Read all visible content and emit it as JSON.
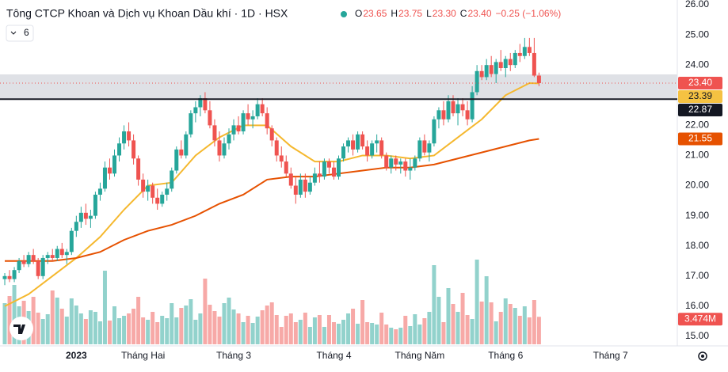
{
  "chart_data": {
    "type": "candlestick",
    "title": "Tông CTCP Khoan và Dịch vụ Khoan Dầu khí · 1D · HSX",
    "ohlc": [
      {
        "key": "O",
        "value": "23.65"
      },
      {
        "key": "H",
        "value": "23.75"
      },
      {
        "key": "L",
        "value": "23.30"
      },
      {
        "key": "C",
        "value": "23.40"
      }
    ],
    "change": "−0.25 (−1.06%)",
    "indicator_count": "6",
    "up_color": "#26a69a",
    "down_color": "#ef5350",
    "up_volume_color": "#92d2cc",
    "down_volume_color": "#f7a9a7",
    "xlim": [
      -1,
      141
    ],
    "xticks": [
      {
        "value": 15,
        "label": "2023"
      },
      {
        "value": 29,
        "label": "Tháng Hai"
      },
      {
        "value": 48,
        "label": "Tháng 3"
      },
      {
        "value": 69,
        "label": "Tháng 4"
      },
      {
        "value": 87,
        "label": "Tháng Năm"
      },
      {
        "value": 105,
        "label": "Tháng 6"
      },
      {
        "value": 127,
        "label": "Tháng 7"
      }
    ],
    "ylim": [
      15,
      26
    ],
    "yticks": [
      {
        "value": 15,
        "label": "15.00"
      },
      {
        "value": 16,
        "label": "16.00"
      },
      {
        "value": 17,
        "label": "17.00"
      },
      {
        "value": 18,
        "label": "18.00"
      },
      {
        "value": 19,
        "label": "19.00"
      },
      {
        "value": 20,
        "label": "20.00"
      },
      {
        "value": 21,
        "label": "21.00"
      },
      {
        "value": 22,
        "label": "22.00"
      },
      {
        "value": 23,
        "label": "23.00"
      },
      {
        "value": 24,
        "label": "24.00"
      },
      {
        "value": 25,
        "label": "25.00"
      },
      {
        "value": 26,
        "label": "26.00"
      }
    ],
    "volume_lim": [
      0,
      11
    ],
    "candles": [
      [
        16.9,
        17.1,
        16.7,
        17.0
      ],
      [
        17.0,
        17.2,
        16.8,
        16.9
      ],
      [
        16.9,
        17.3,
        16.8,
        17.2
      ],
      [
        17.2,
        17.6,
        17.1,
        17.5
      ],
      [
        17.5,
        17.7,
        17.3,
        17.4
      ],
      [
        17.4,
        17.8,
        17.3,
        17.7
      ],
      [
        17.7,
        17.9,
        17.4,
        17.5
      ],
      [
        17.5,
        17.6,
        16.9,
        17.0
      ],
      [
        17.0,
        17.7,
        16.9,
        17.6
      ],
      [
        17.6,
        17.8,
        17.4,
        17.7
      ],
      [
        17.7,
        17.9,
        17.5,
        17.6
      ],
      [
        17.6,
        18.0,
        17.5,
        17.9
      ],
      [
        17.9,
        18.1,
        17.6,
        17.7
      ],
      [
        17.7,
        17.9,
        17.4,
        17.8
      ],
      [
        17.8,
        18.6,
        17.7,
        18.5
      ],
      [
        18.5,
        19.0,
        18.3,
        18.8
      ],
      [
        18.8,
        19.3,
        18.6,
        19.1
      ],
      [
        19.1,
        19.4,
        18.7,
        18.9
      ],
      [
        18.9,
        19.2,
        18.6,
        19.0
      ],
      [
        19.0,
        19.8,
        18.9,
        19.7
      ],
      [
        19.7,
        20.1,
        19.5,
        19.9
      ],
      [
        19.9,
        20.8,
        19.8,
        20.6
      ],
      [
        20.6,
        20.9,
        20.2,
        20.4
      ],
      [
        20.4,
        21.2,
        20.3,
        21.0
      ],
      [
        21.0,
        21.6,
        20.8,
        21.4
      ],
      [
        21.4,
        22.0,
        21.2,
        21.8
      ],
      [
        21.8,
        22.1,
        21.3,
        21.5
      ],
      [
        21.5,
        21.7,
        20.7,
        20.9
      ],
      [
        20.9,
        21.0,
        20.0,
        20.2
      ],
      [
        20.2,
        20.4,
        19.6,
        19.8
      ],
      [
        19.8,
        20.2,
        19.5,
        20.0
      ],
      [
        20.0,
        20.1,
        19.4,
        19.6
      ],
      [
        19.6,
        19.9,
        19.2,
        19.4
      ],
      [
        19.4,
        19.8,
        19.3,
        19.7
      ],
      [
        19.7,
        20.1,
        19.5,
        19.9
      ],
      [
        19.9,
        20.6,
        19.8,
        20.5
      ],
      [
        20.5,
        21.3,
        20.4,
        21.2
      ],
      [
        21.2,
        21.5,
        20.9,
        21.0
      ],
      [
        21.0,
        21.8,
        20.9,
        21.7
      ],
      [
        21.7,
        22.5,
        21.6,
        22.4
      ],
      [
        22.4,
        22.8,
        22.1,
        22.6
      ],
      [
        22.6,
        23.0,
        22.3,
        22.9
      ],
      [
        22.9,
        23.1,
        22.4,
        22.5
      ],
      [
        22.5,
        22.8,
        21.9,
        22.0
      ],
      [
        22.0,
        22.2,
        21.3,
        21.5
      ],
      [
        21.5,
        21.8,
        20.8,
        21.0
      ],
      [
        21.0,
        21.6,
        20.9,
        21.4
      ],
      [
        21.4,
        21.9,
        21.2,
        21.7
      ],
      [
        21.7,
        22.2,
        21.5,
        22.0
      ],
      [
        22.0,
        22.3,
        21.7,
        21.8
      ],
      [
        21.8,
        22.5,
        21.7,
        22.4
      ],
      [
        22.4,
        22.7,
        22.0,
        22.2
      ],
      [
        22.2,
        22.5,
        21.9,
        22.3
      ],
      [
        22.3,
        22.9,
        22.2,
        22.7
      ],
      [
        22.7,
        22.9,
        22.3,
        22.4
      ],
      [
        22.4,
        22.6,
        21.7,
        21.9
      ],
      [
        21.9,
        22.0,
        21.3,
        21.5
      ],
      [
        21.5,
        21.6,
        20.8,
        21.0
      ],
      [
        21.0,
        21.3,
        20.6,
        20.8
      ],
      [
        20.8,
        21.0,
        20.3,
        20.4
      ],
      [
        20.4,
        20.6,
        19.9,
        20.0
      ],
      [
        20.0,
        20.3,
        19.4,
        19.7
      ],
      [
        19.7,
        20.4,
        19.6,
        20.2
      ],
      [
        20.2,
        20.4,
        19.6,
        19.8
      ],
      [
        19.8,
        20.3,
        19.7,
        20.1
      ],
      [
        20.1,
        20.6,
        20.0,
        20.4
      ],
      [
        20.4,
        20.8,
        20.1,
        20.3
      ],
      [
        20.3,
        20.9,
        20.2,
        20.8
      ],
      [
        20.8,
        20.9,
        20.4,
        20.6
      ],
      [
        20.6,
        20.8,
        20.2,
        20.3
      ],
      [
        20.3,
        21.0,
        20.2,
        20.9
      ],
      [
        20.9,
        21.4,
        20.8,
        21.3
      ],
      [
        21.3,
        21.6,
        21.1,
        21.5
      ],
      [
        21.5,
        21.7,
        21.0,
        21.2
      ],
      [
        21.2,
        21.8,
        21.1,
        21.7
      ],
      [
        21.7,
        21.8,
        21.2,
        21.3
      ],
      [
        21.3,
        21.5,
        20.8,
        21.0
      ],
      [
        21.0,
        21.5,
        20.9,
        21.4
      ],
      [
        21.4,
        21.7,
        21.1,
        21.5
      ],
      [
        21.5,
        21.6,
        20.9,
        21.0
      ],
      [
        21.0,
        21.1,
        20.5,
        20.6
      ],
      [
        20.6,
        21.0,
        20.4,
        20.9
      ],
      [
        20.9,
        21.0,
        20.5,
        20.7
      ],
      [
        20.7,
        20.9,
        20.4,
        20.8
      ],
      [
        20.8,
        20.9,
        20.3,
        20.5
      ],
      [
        20.5,
        20.9,
        20.2,
        20.6
      ],
      [
        20.6,
        21.0,
        20.5,
        20.9
      ],
      [
        20.9,
        21.6,
        20.8,
        21.5
      ],
      [
        21.5,
        21.7,
        21.0,
        21.1
      ],
      [
        21.1,
        21.5,
        20.8,
        21.4
      ],
      [
        21.4,
        22.3,
        21.3,
        22.2
      ],
      [
        22.2,
        22.6,
        21.9,
        22.5
      ],
      [
        22.5,
        22.8,
        22.0,
        22.2
      ],
      [
        22.2,
        23.0,
        22.1,
        22.8
      ],
      [
        22.8,
        23.0,
        22.3,
        22.4
      ],
      [
        22.4,
        22.9,
        22.0,
        22.7
      ],
      [
        22.7,
        22.9,
        22.3,
        22.5
      ],
      [
        22.5,
        22.8,
        22.0,
        22.2
      ],
      [
        22.2,
        23.3,
        22.1,
        23.1
      ],
      [
        23.1,
        24.0,
        23.0,
        23.8
      ],
      [
        23.8,
        24.0,
        23.5,
        23.6
      ],
      [
        23.6,
        24.2,
        23.5,
        24.0
      ],
      [
        24.0,
        24.3,
        23.6,
        23.7
      ],
      [
        23.7,
        24.2,
        23.4,
        24.1
      ],
      [
        24.1,
        24.5,
        23.8,
        23.9
      ],
      [
        23.9,
        24.3,
        23.6,
        24.2
      ],
      [
        24.2,
        24.4,
        23.8,
        24.0
      ],
      [
        24.0,
        24.5,
        23.9,
        24.4
      ],
      [
        24.4,
        24.7,
        24.1,
        24.3
      ],
      [
        24.3,
        24.9,
        24.2,
        24.6
      ],
      [
        24.6,
        24.9,
        24.3,
        24.4
      ],
      [
        24.4,
        24.9,
        23.6,
        23.65
      ],
      [
        23.65,
        23.75,
        23.3,
        23.4
      ]
    ],
    "volume": [
      5.2,
      6.1,
      7.5,
      4.8,
      5.5,
      4.2,
      6.0,
      4.0,
      3.2,
      3.8,
      6.8,
      5.9,
      4.5,
      3.5,
      5.8,
      4.9,
      3.9,
      3.2,
      4.3,
      4.1,
      2.9,
      9.3,
      3.0,
      4.8,
      3.3,
      3.6,
      3.9,
      4.5,
      6.0,
      3.4,
      3.1,
      4.1,
      2.8,
      3.6,
      3.3,
      5.2,
      3.4,
      4.6,
      4.9,
      5.7,
      3.1,
      3.9,
      8.3,
      5.0,
      4.2,
      3.5,
      5.2,
      5.9,
      4.4,
      3.9,
      2.8,
      3.6,
      2.7,
      3.5,
      4.3,
      4.9,
      5.3,
      3.7,
      2.2,
      3.6,
      3.9,
      2.8,
      3.1,
      4.0,
      2.2,
      3.4,
      3.7,
      2.2,
      3.7,
      2.8,
      2.6,
      3.1,
      3.9,
      4.5,
      2.6,
      5.6,
      2.8,
      2.7,
      2.5,
      4.0,
      2.5,
      2.1,
      1.9,
      2.1,
      3.6,
      2.3,
      3.8,
      2.5,
      3.3,
      4.1,
      10.0,
      6.0,
      2.8,
      7.1,
      5.1,
      4.1,
      6.5,
      3.7,
      3.2,
      10.7,
      5.4,
      8.6,
      5.3,
      2.9,
      4.1,
      5.8,
      5.1,
      4.6,
      3.6,
      4.8,
      3.4,
      5.6,
      3.474
    ],
    "lines": [
      {
        "color": "#f5b82e",
        "x": [
          0,
          5,
          10,
          15,
          20,
          25,
          30,
          35,
          40,
          45,
          50,
          55,
          60,
          65,
          70,
          75,
          80,
          85,
          90,
          95,
          100,
          105,
          110,
          112
        ],
        "values": [
          16.0,
          16.4,
          17.0,
          17.6,
          18.3,
          19.2,
          20.0,
          20.1,
          21.0,
          21.6,
          22.0,
          22.0,
          21.3,
          20.8,
          20.8,
          21.0,
          21.0,
          20.9,
          21.0,
          21.6,
          22.2,
          23.0,
          23.4,
          23.39
        ]
      },
      {
        "color": "#e65100",
        "x": [
          0,
          10,
          15,
          20,
          25,
          30,
          35,
          40,
          45,
          50,
          55,
          60,
          65,
          70,
          75,
          80,
          85,
          90,
          95,
          100,
          105,
          110,
          112
        ],
        "values": [
          17.5,
          17.5,
          17.6,
          17.8,
          18.2,
          18.5,
          18.7,
          19.0,
          19.4,
          19.7,
          20.2,
          20.3,
          20.3,
          20.4,
          20.5,
          20.6,
          20.6,
          20.7,
          20.9,
          21.1,
          21.3,
          21.5,
          21.55
        ]
      }
    ],
    "price_tags": [
      {
        "value": 23.4,
        "label": "23.40",
        "color": "#ef5350"
      },
      {
        "value": 23.39,
        "label": "23.39",
        "color": "#f5c242"
      },
      {
        "value": 22.87,
        "label": "22.87",
        "color": "#131722"
      },
      {
        "value": 21.55,
        "label": "21.55",
        "color": "#e65100"
      }
    ],
    "volume_tag": {
      "value": 3.474,
      "label": "3.474M",
      "color": "#ef5350"
    }
  }
}
